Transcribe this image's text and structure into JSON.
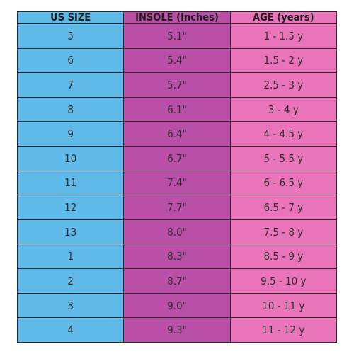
{
  "table": {
    "header": [
      "US SIZE",
      "INSOLE (Inches)",
      "AGE (years)"
    ],
    "rows": [
      [
        "5",
        "5.1\"",
        "1 - 1.5 y"
      ],
      [
        "6",
        "5.4\"",
        "1.5 - 2 y"
      ],
      [
        "7",
        "5.7\"",
        "2.5 - 3 y"
      ],
      [
        "8",
        "6.1\"",
        "3 - 4 y"
      ],
      [
        "9",
        "6.4\"",
        "4 - 4.5 y"
      ],
      [
        "10",
        "6.7\"",
        "5 - 5.5 y"
      ],
      [
        "11",
        "7.4\"",
        "6 - 6.5 y"
      ],
      [
        "12",
        "7.7\"",
        "6.5 - 7 y"
      ],
      [
        "13",
        "8.0\"",
        "7.5 - 8 y"
      ],
      [
        "1",
        "8.3\"",
        "8.5 - 9 y"
      ],
      [
        "2",
        "8.7\"",
        "9.5 - 10 y"
      ],
      [
        "3",
        "9.0\"",
        "10 - 11 y"
      ],
      [
        "4",
        "9.3\"",
        "11 - 12 y"
      ]
    ]
  }
}
